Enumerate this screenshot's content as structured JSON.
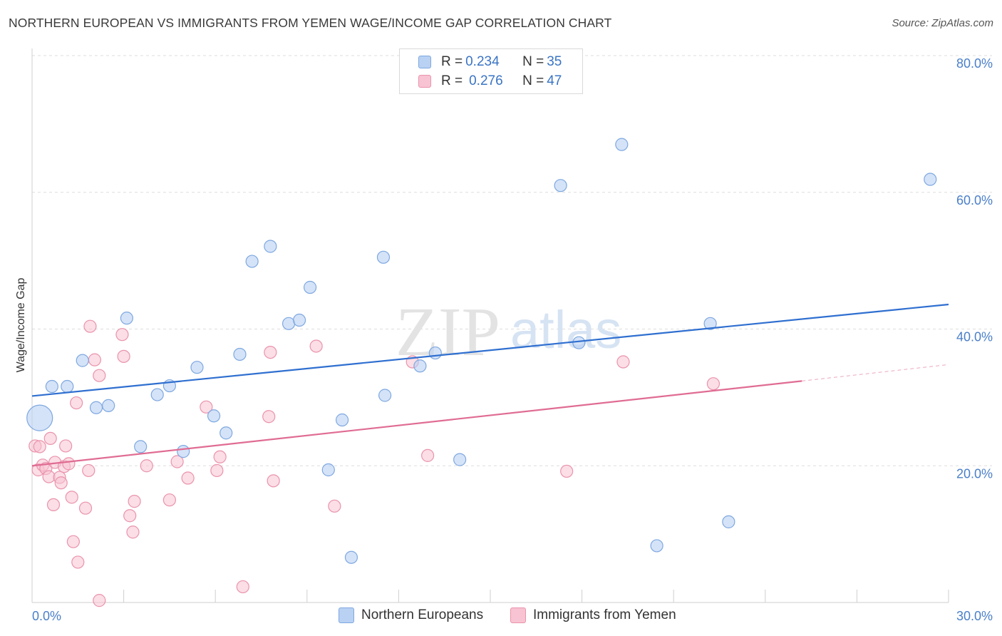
{
  "title": "NORTHERN EUROPEAN VS IMMIGRANTS FROM YEMEN WAGE/INCOME GAP CORRELATION CHART",
  "source": "Source: ZipAtlas.com",
  "watermark": {
    "zip": "ZIP",
    "atlas": "atlas"
  },
  "legend": {
    "series1": {
      "r_label": "R =",
      "r_value": "0.234",
      "n_label": "N =",
      "n_value": "35"
    },
    "series2": {
      "r_label": "R =",
      "r_value": "0.276",
      "n_label": "N =",
      "n_value": "47"
    }
  },
  "bottom_legend": {
    "series1": "Northern Europeans",
    "series2": "Immigrants from Yemen"
  },
  "colors": {
    "blue_fill": "#b9d1f3",
    "blue_stroke": "#7ea8e0",
    "blue_line": "#2f6fd0",
    "pink_fill": "#f8c3d2",
    "pink_stroke": "#ea93ac",
    "pink_line": "#e06c93",
    "tick_color": "#4a7fc9",
    "grid": "#dddddd"
  },
  "chart_data": {
    "type": "scatter",
    "title": "NORTHERN EUROPEAN VS IMMIGRANTS FROM YEMEN WAGE/INCOME GAP CORRELATION CHART",
    "xlabel": "",
    "ylabel": "Wage/Income Gap",
    "xlim": [
      0,
      30
    ],
    "ylim": [
      0,
      80
    ],
    "x_tick_labels": [
      "0.0%",
      "30.0%"
    ],
    "y_ticks": [
      20,
      40,
      60,
      80
    ],
    "y_tick_labels": [
      "20.0%",
      "40.0%",
      "60.0%",
      "80.0%"
    ],
    "legend_position": "top-center",
    "series": [
      {
        "name": "Northern Europeans",
        "r": 0.234,
        "n": 35,
        "trend": {
          "x": [
            0,
            30
          ],
          "y": [
            30.2,
            43.6
          ]
        },
        "points": [
          {
            "x": 0.25,
            "y": 27.0,
            "s": "big"
          },
          {
            "x": 0.65,
            "y": 31.6
          },
          {
            "x": 1.15,
            "y": 31.6
          },
          {
            "x": 1.65,
            "y": 35.4
          },
          {
            "x": 2.1,
            "y": 28.5
          },
          {
            "x": 2.5,
            "y": 28.8
          },
          {
            "x": 3.1,
            "y": 41.6
          },
          {
            "x": 3.55,
            "y": 22.8
          },
          {
            "x": 4.1,
            "y": 30.4
          },
          {
            "x": 4.5,
            "y": 31.7
          },
          {
            "x": 4.95,
            "y": 22.1
          },
          {
            "x": 5.4,
            "y": 34.4
          },
          {
            "x": 5.95,
            "y": 27.3
          },
          {
            "x": 6.35,
            "y": 24.8
          },
          {
            "x": 6.8,
            "y": 36.3
          },
          {
            "x": 7.2,
            "y": 49.9
          },
          {
            "x": 7.8,
            "y": 52.1
          },
          {
            "x": 8.4,
            "y": 40.8
          },
          {
            "x": 8.75,
            "y": 41.3
          },
          {
            "x": 9.1,
            "y": 46.1
          },
          {
            "x": 9.7,
            "y": 19.4
          },
          {
            "x": 10.45,
            "y": 6.6
          },
          {
            "x": 10.15,
            "y": 26.7
          },
          {
            "x": 11.5,
            "y": 50.5
          },
          {
            "x": 11.55,
            "y": 30.3
          },
          {
            "x": 12.7,
            "y": 34.6
          },
          {
            "x": 13.2,
            "y": 36.5
          },
          {
            "x": 14.0,
            "y": 20.9
          },
          {
            "x": 17.3,
            "y": 61.0
          },
          {
            "x": 17.9,
            "y": 38.0
          },
          {
            "x": 19.3,
            "y": 67.0
          },
          {
            "x": 20.45,
            "y": 8.3
          },
          {
            "x": 22.2,
            "y": 40.8
          },
          {
            "x": 22.8,
            "y": 11.8
          },
          {
            "x": 29.4,
            "y": 61.9
          }
        ]
      },
      {
        "name": "Immigrants from Yemen",
        "r": 0.276,
        "n": 47,
        "trend": {
          "x": [
            0,
            25.2
          ],
          "y": [
            20.0,
            32.4
          ]
        },
        "trend_dashed": {
          "x": [
            25.2,
            30
          ],
          "y": [
            32.4,
            34.8
          ]
        },
        "points": [
          {
            "x": 0.1,
            "y": 22.9
          },
          {
            "x": 0.2,
            "y": 19.4
          },
          {
            "x": 0.25,
            "y": 22.8
          },
          {
            "x": 0.35,
            "y": 20.1
          },
          {
            "x": 0.45,
            "y": 19.6
          },
          {
            "x": 0.55,
            "y": 18.4
          },
          {
            "x": 0.6,
            "y": 24.0
          },
          {
            "x": 0.7,
            "y": 14.3
          },
          {
            "x": 0.75,
            "y": 20.5
          },
          {
            "x": 0.9,
            "y": 18.3
          },
          {
            "x": 0.95,
            "y": 17.5
          },
          {
            "x": 1.05,
            "y": 19.9
          },
          {
            "x": 1.1,
            "y": 22.9
          },
          {
            "x": 1.2,
            "y": 20.3
          },
          {
            "x": 1.3,
            "y": 15.4
          },
          {
            "x": 1.35,
            "y": 8.9
          },
          {
            "x": 1.45,
            "y": 29.2
          },
          {
            "x": 1.5,
            "y": 5.9
          },
          {
            "x": 1.75,
            "y": 13.8
          },
          {
            "x": 1.85,
            "y": 19.3
          },
          {
            "x": 1.9,
            "y": 40.4
          },
          {
            "x": 2.05,
            "y": 35.5
          },
          {
            "x": 2.2,
            "y": 33.2
          },
          {
            "x": 2.2,
            "y": 0.3
          },
          {
            "x": 2.95,
            "y": 39.2
          },
          {
            "x": 3.0,
            "y": 36.0
          },
          {
            "x": 3.2,
            "y": 12.7
          },
          {
            "x": 3.3,
            "y": 10.3
          },
          {
            "x": 3.35,
            "y": 14.8
          },
          {
            "x": 3.75,
            "y": 20.0
          },
          {
            "x": 4.5,
            "y": 15.0
          },
          {
            "x": 4.75,
            "y": 20.6
          },
          {
            "x": 5.1,
            "y": 18.2
          },
          {
            "x": 5.7,
            "y": 28.6
          },
          {
            "x": 6.05,
            "y": 19.3
          },
          {
            "x": 6.15,
            "y": 21.3
          },
          {
            "x": 6.9,
            "y": 2.3
          },
          {
            "x": 7.75,
            "y": 27.2
          },
          {
            "x": 7.8,
            "y": 36.6
          },
          {
            "x": 7.9,
            "y": 17.8
          },
          {
            "x": 9.3,
            "y": 37.5
          },
          {
            "x": 9.9,
            "y": 14.1
          },
          {
            "x": 12.45,
            "y": 35.2
          },
          {
            "x": 12.95,
            "y": 21.5
          },
          {
            "x": 17.5,
            "y": 19.2
          },
          {
            "x": 19.35,
            "y": 35.2
          },
          {
            "x": 22.3,
            "y": 32.0
          }
        ]
      }
    ]
  }
}
